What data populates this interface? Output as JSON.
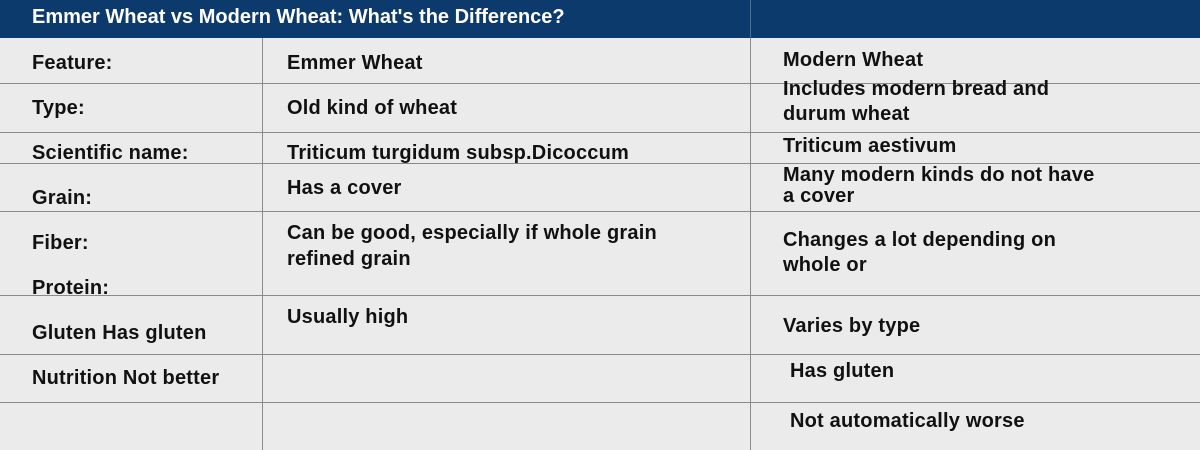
{
  "header": {
    "title": "Emmer Wheat vs Modern Wheat: What's the Difference?"
  },
  "table": {
    "columns": [
      [
        [
          "Feature:"
        ],
        [
          "Type:"
        ],
        [
          "Scientific name:"
        ],
        [
          "Grain:"
        ],
        [
          "Fiber:"
        ],
        [
          "Protein:"
        ],
        [
          "Gluten Has gluten"
        ],
        [
          "Nutrition Not better"
        ]
      ],
      [
        [
          "Emmer Wheat"
        ],
        [
          "Old kind of wheat"
        ],
        [
          "Triticum turgidum subsp.Dicoccum"
        ],
        [
          "Has a cover"
        ],
        [
          "Can be good, especially if whole grain",
          "refined grain"
        ],
        [
          "Usually high"
        ]
      ],
      [
        [
          "Modern Wheat"
        ],
        [
          "Includes modern bread and",
          "durum wheat"
        ],
        [
          "Triticum aestivum"
        ],
        [
          "Many modern kinds do not have",
          "a cover"
        ],
        [
          "Changes a lot depending on",
          "whole or"
        ],
        [
          "Varies by type"
        ],
        [
          "Has gluten"
        ],
        [
          "Not automatically worse"
        ]
      ]
    ]
  }
}
